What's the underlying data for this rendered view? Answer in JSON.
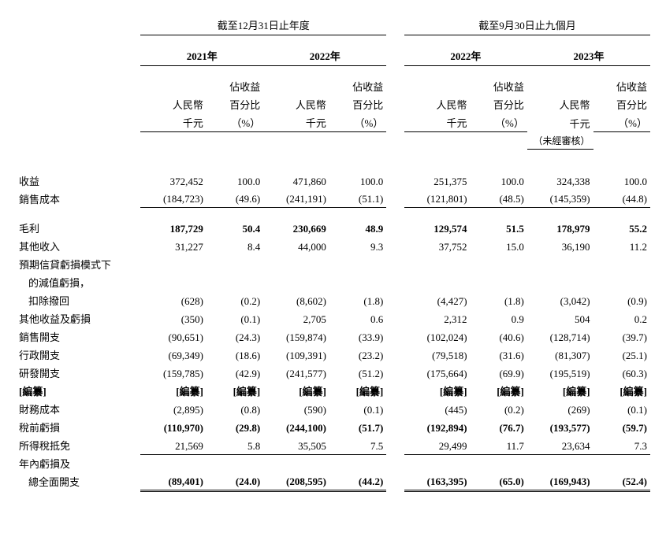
{
  "periods": {
    "annual": "截至12月31日止年度",
    "interim": "截至9月30日止九個月"
  },
  "years": {
    "y2021": "2021年",
    "y2022a": "2022年",
    "y2022i": "2022年",
    "y2023": "2023年"
  },
  "unit_labels": {
    "rmb_line1": "人民幣",
    "rmb_line2": "千元",
    "rmb_line3_unaudited": "（未經審核）",
    "pct_line1": "佔收益",
    "pct_line2": "百分比",
    "pct_line3": "（%）"
  },
  "rows": {
    "revenue": {
      "label": "收益",
      "c": [
        "372,452",
        "100.0",
        "471,860",
        "100.0",
        "251,375",
        "100.0",
        "324,338",
        "100.0"
      ]
    },
    "cost_of_sales": {
      "label": "銷售成本",
      "c": [
        "(184,723)",
        "(49.6)",
        "(241,191)",
        "(51.1)",
        "(121,801)",
        "(48.5)",
        "(145,359)",
        "(44.8)"
      ]
    },
    "gross_profit": {
      "label": "毛利",
      "c": [
        "187,729",
        "50.4",
        "230,669",
        "48.9",
        "129,574",
        "51.5",
        "178,979",
        "55.2"
      ]
    },
    "other_income": {
      "label": "其他收入",
      "c": [
        "31,227",
        "8.4",
        "44,000",
        "9.3",
        "37,752",
        "15.0",
        "36,190",
        "11.2"
      ]
    },
    "ecl_head": {
      "label": "預期信貸虧損模式下"
    },
    "ecl_line2": {
      "label": "的減值虧損，"
    },
    "ecl_line3": {
      "label": "扣除撥回",
      "c": [
        "(628)",
        "(0.2)",
        "(8,602)",
        "(1.8)",
        "(4,427)",
        "(1.8)",
        "(3,042)",
        "(0.9)"
      ]
    },
    "other_gains": {
      "label": "其他收益及虧損",
      "c": [
        "(350)",
        "(0.1)",
        "2,705",
        "0.6",
        "2,312",
        "0.9",
        "504",
        "0.2"
      ]
    },
    "selling_exp": {
      "label": "銷售開支",
      "c": [
        "(90,651)",
        "(24.3)",
        "(159,874)",
        "(33.9)",
        "(102,024)",
        "(40.6)",
        "(128,714)",
        "(39.7)"
      ]
    },
    "admin_exp": {
      "label": "行政開支",
      "c": [
        "(69,349)",
        "(18.6)",
        "(109,391)",
        "(23.2)",
        "(79,518)",
        "(31.6)",
        "(81,307)",
        "(25.1)"
      ]
    },
    "rd_exp": {
      "label": "研發開支",
      "c": [
        "(159,785)",
        "(42.9)",
        "(241,577)",
        "(51.2)",
        "(175,664)",
        "(69.9)",
        "(195,519)",
        "(60.3)"
      ]
    },
    "redacted": {
      "label": "[編纂]",
      "c": [
        "[編纂]",
        "[編纂]",
        "[編纂]",
        "[編纂]",
        "[編纂]",
        "[編纂]",
        "[編纂]",
        "[編纂]"
      ]
    },
    "finance_cost": {
      "label": "財務成本",
      "c": [
        "(2,895)",
        "(0.8)",
        "(590)",
        "(0.1)",
        "(445)",
        "(0.2)",
        "(269)",
        "(0.1)"
      ]
    },
    "loss_before_tax": {
      "label": "稅前虧損",
      "c": [
        "(110,970)",
        "(29.8)",
        "(244,100)",
        "(51.7)",
        "(192,894)",
        "(76.7)",
        "(193,577)",
        "(59.7)"
      ]
    },
    "tax_credit": {
      "label": "所得稅抵免",
      "c": [
        "21,569",
        "5.8",
        "35,505",
        "7.5",
        "29,499",
        "11.7",
        "23,634",
        "7.3"
      ]
    },
    "loss_year_head": {
      "label": "年內虧損及"
    },
    "total_comp": {
      "label": "總全面開支",
      "c": [
        "(89,401)",
        "(24.0)",
        "(208,595)",
        "(44.2)",
        "(163,395)",
        "(65.0)",
        "(169,943)",
        "(52.4)"
      ]
    }
  }
}
